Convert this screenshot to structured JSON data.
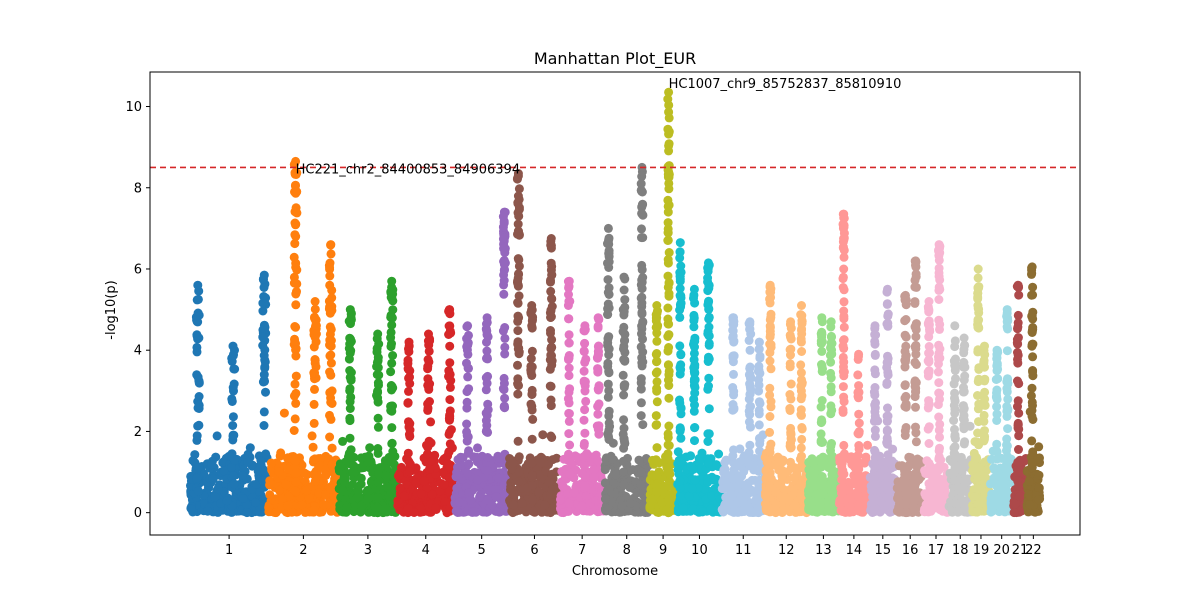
{
  "chart_data": {
    "type": "scatter",
    "title": "Manhattan Plot_EUR",
    "xlabel": "Chromosome",
    "ylabel": "-log10(p)",
    "ylim": [
      -0.55,
      10.85
    ],
    "yticks": [
      0,
      2,
      4,
      6,
      8,
      10
    ],
    "grid": false,
    "legend": "none",
    "threshold": {
      "value": 8.5,
      "color": "#d62728",
      "style": "dashed"
    },
    "chromosomes": [
      {
        "label": "1",
        "start": 0,
        "end": 100,
        "color": "#1f77b4",
        "peaks": [
          [
            10,
            5.6
          ],
          [
            55,
            4.1
          ],
          [
            95,
            5.85
          ]
        ]
      },
      {
        "label": "2",
        "start": 100,
        "end": 190,
        "color": "#ff7f0e",
        "peaks": [
          [
            135,
            8.65
          ],
          [
            160,
            5.2
          ],
          [
            180,
            6.6
          ]
        ]
      },
      {
        "label": "3",
        "start": 190,
        "end": 265,
        "color": "#2ca02c",
        "peaks": [
          [
            205,
            5.0
          ],
          [
            240,
            4.4
          ],
          [
            258,
            5.7
          ]
        ]
      },
      {
        "label": "4",
        "start": 265,
        "end": 338,
        "color": "#d62728",
        "peaks": [
          [
            280,
            4.2
          ],
          [
            305,
            4.4
          ],
          [
            332,
            5.0
          ]
        ]
      },
      {
        "label": "5",
        "start": 338,
        "end": 408,
        "color": "#9467bd",
        "peaks": [
          [
            355,
            4.6
          ],
          [
            380,
            4.8
          ],
          [
            402,
            7.4
          ]
        ]
      },
      {
        "label": "6",
        "start": 408,
        "end": 473,
        "color": "#8c564b",
        "peaks": [
          [
            420,
            8.35
          ],
          [
            437,
            5.1
          ],
          [
            462,
            6.75
          ]
        ]
      },
      {
        "label": "7",
        "start": 473,
        "end": 530,
        "color": "#e377c2",
        "peaks": [
          [
            485,
            5.7
          ],
          [
            505,
            4.6
          ],
          [
            522,
            4.8
          ]
        ]
      },
      {
        "label": "8",
        "start": 530,
        "end": 587,
        "color": "#7f7f7f",
        "peaks": [
          [
            535,
            7.0
          ],
          [
            555,
            5.8
          ],
          [
            578,
            8.5
          ]
        ]
      },
      {
        "label": "9",
        "start": 587,
        "end": 623,
        "color": "#bcbd22",
        "peaks": [
          [
            597,
            5.1
          ],
          [
            612,
            10.35
          ]
        ]
      },
      {
        "label": "10",
        "start": 623,
        "end": 680,
        "color": "#17becf",
        "peaks": [
          [
            627,
            6.65
          ],
          [
            645,
            5.5
          ],
          [
            663,
            6.15
          ]
        ]
      },
      {
        "label": "11",
        "start": 680,
        "end": 735,
        "color": "#aec7e8",
        "peaks": [
          [
            695,
            4.8
          ],
          [
            716,
            4.7
          ],
          [
            728,
            4.2
          ]
        ]
      },
      {
        "label": "12",
        "start": 735,
        "end": 790,
        "color": "#ffbb78",
        "peaks": [
          [
            742,
            5.6
          ],
          [
            768,
            4.7
          ],
          [
            782,
            5.1
          ]
        ]
      },
      {
        "label": "13",
        "start": 790,
        "end": 830,
        "color": "#98df8a",
        "peaks": [
          [
            808,
            4.8
          ],
          [
            820,
            4.7
          ]
        ]
      },
      {
        "label": "14",
        "start": 830,
        "end": 868,
        "color": "#ff9896",
        "peaks": [
          [
            836,
            7.35
          ],
          [
            855,
            3.9
          ]
        ]
      },
      {
        "label": "15",
        "start": 868,
        "end": 904,
        "color": "#c5b0d5",
        "peaks": [
          [
            876,
            4.6
          ],
          [
            892,
            5.5
          ]
        ]
      },
      {
        "label": "16",
        "start": 904,
        "end": 938,
        "color": "#c49c94",
        "peaks": [
          [
            915,
            5.35
          ],
          [
            928,
            6.2
          ]
        ]
      },
      {
        "label": "17",
        "start": 938,
        "end": 970,
        "color": "#f7b6d2",
        "peaks": [
          [
            945,
            5.2
          ],
          [
            958,
            6.6
          ]
        ]
      },
      {
        "label": "18",
        "start": 970,
        "end": 1000,
        "color": "#c7c7c7",
        "peaks": [
          [
            978,
            4.6
          ],
          [
            990,
            4.3
          ]
        ]
      },
      {
        "label": "19",
        "start": 1000,
        "end": 1023,
        "color": "#dbdb8d",
        "peaks": [
          [
            1008,
            6.0
          ],
          [
            1016,
            4.1
          ]
        ]
      },
      {
        "label": "20",
        "start": 1023,
        "end": 1053,
        "color": "#9edae5",
        "peaks": [
          [
            1032,
            4.0
          ],
          [
            1045,
            5.0
          ]
        ]
      },
      {
        "label": "21",
        "start": 1053,
        "end": 1070,
        "color": "#ad494a",
        "peaks": [
          [
            1059,
            5.6
          ]
        ]
      },
      {
        "label": "22",
        "start": 1070,
        "end": 1087,
        "color": "#8c6d31",
        "peaks": [
          [
            1077,
            6.05
          ]
        ]
      }
    ],
    "annotations": [
      {
        "text": "HC1007_chr9_85752837_85810910",
        "x": 612,
        "y": 10.35,
        "dy": 10.55
      },
      {
        "text": "HC221_chr2_84400853_84906394",
        "x": 135,
        "y": 8.65,
        "dy": 8.45
      }
    ]
  }
}
